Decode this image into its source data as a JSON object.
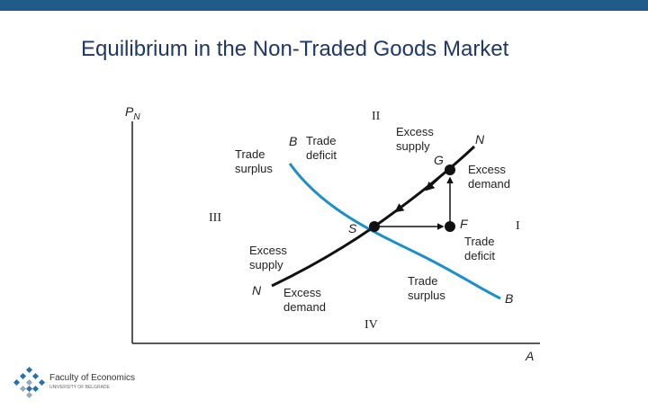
{
  "header": {
    "title": "Equilibrium in the Non-Traded Goods Market"
  },
  "axes": {
    "y_main": "P",
    "y_sub": "N",
    "x": "A"
  },
  "regions": {
    "r1": "I",
    "r2": "II",
    "r3": "III",
    "r4": "IV"
  },
  "curves": {
    "bb_top": "B",
    "bb_bottom": "B",
    "nn_top": "N",
    "nn_bottom": "N"
  },
  "points": {
    "s": "S",
    "g": "G",
    "f": "F"
  },
  "annotations": {
    "trade_deficit_top": [
      "Trade",
      "deficit"
    ],
    "trade_surplus_top": [
      "Trade",
      "surplus"
    ],
    "excess_supply_top": [
      "Excess",
      "supply"
    ],
    "excess_demand_right": [
      "Excess",
      "demand"
    ],
    "trade_deficit_right": [
      "Trade",
      "deficit"
    ],
    "excess_supply_left": [
      "Excess",
      "supply"
    ],
    "excess_demand_bottom": [
      "Excess",
      "demand"
    ],
    "trade_surplus_bottom": [
      "Trade",
      "surplus"
    ]
  },
  "logo": {
    "name": "Faculty of Economics",
    "sub": "UNIVERSITY OF BELGRADE"
  }
}
